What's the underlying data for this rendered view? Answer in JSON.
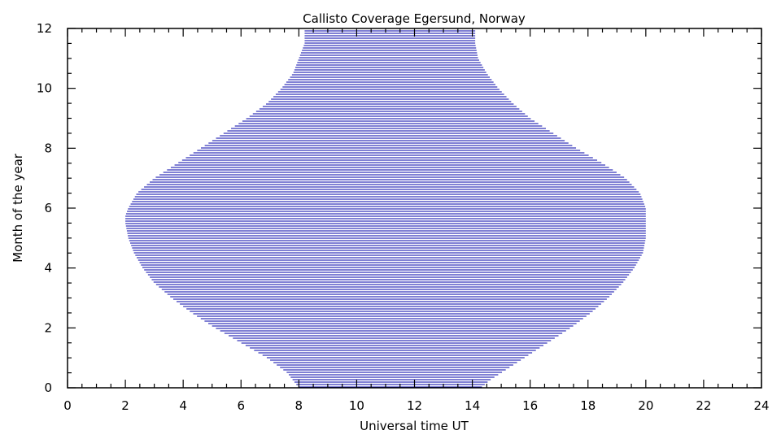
{
  "chart_data": {
    "type": "area",
    "title": "Callisto Coverage Egersund, Norway",
    "xlabel": "Universal time UT",
    "ylabel": "Month of the year",
    "xlim": [
      0,
      24
    ],
    "ylim": [
      0,
      12
    ],
    "xticks": [
      "0",
      "2",
      "4",
      "6",
      "8",
      "10",
      "12",
      "14",
      "16",
      "18",
      "20",
      "22",
      "24"
    ],
    "yticks": [
      "0",
      "2",
      "4",
      "6",
      "8",
      "10",
      "12"
    ],
    "grid": false,
    "legend": "none",
    "fill_style": "horizontal-lines",
    "colors": {
      "series": "#0000aa",
      "axis": "#000000",
      "background": "#ffffff"
    },
    "series": [
      {
        "month": [
          0.0,
          0.25,
          0.5,
          1.0,
          1.5,
          2.0,
          2.5,
          3.0,
          3.5,
          4.0,
          4.5,
          5.0,
          5.5,
          5.75,
          6.0,
          6.5,
          7.0,
          7.5,
          8.0,
          8.5,
          9.0,
          9.5,
          10.0,
          10.5,
          11.0,
          11.5,
          11.75,
          12.0
        ],
        "start_ut": [
          8.0,
          7.8,
          7.6,
          6.9,
          6.0,
          5.1,
          4.3,
          3.6,
          3.0,
          2.6,
          2.3,
          2.1,
          2.0,
          2.0,
          2.1,
          2.4,
          3.0,
          3.8,
          4.6,
          5.4,
          6.2,
          6.9,
          7.4,
          7.8,
          8.0,
          8.2,
          8.2,
          8.2
        ],
        "end_ut": [
          14.3,
          14.6,
          15.0,
          15.8,
          16.6,
          17.4,
          18.1,
          18.7,
          19.2,
          19.6,
          19.9,
          20.0,
          20.0,
          20.0,
          20.0,
          19.8,
          19.3,
          18.5,
          17.6,
          16.8,
          16.0,
          15.4,
          14.9,
          14.5,
          14.2,
          14.1,
          14.1,
          14.1
        ]
      }
    ]
  }
}
